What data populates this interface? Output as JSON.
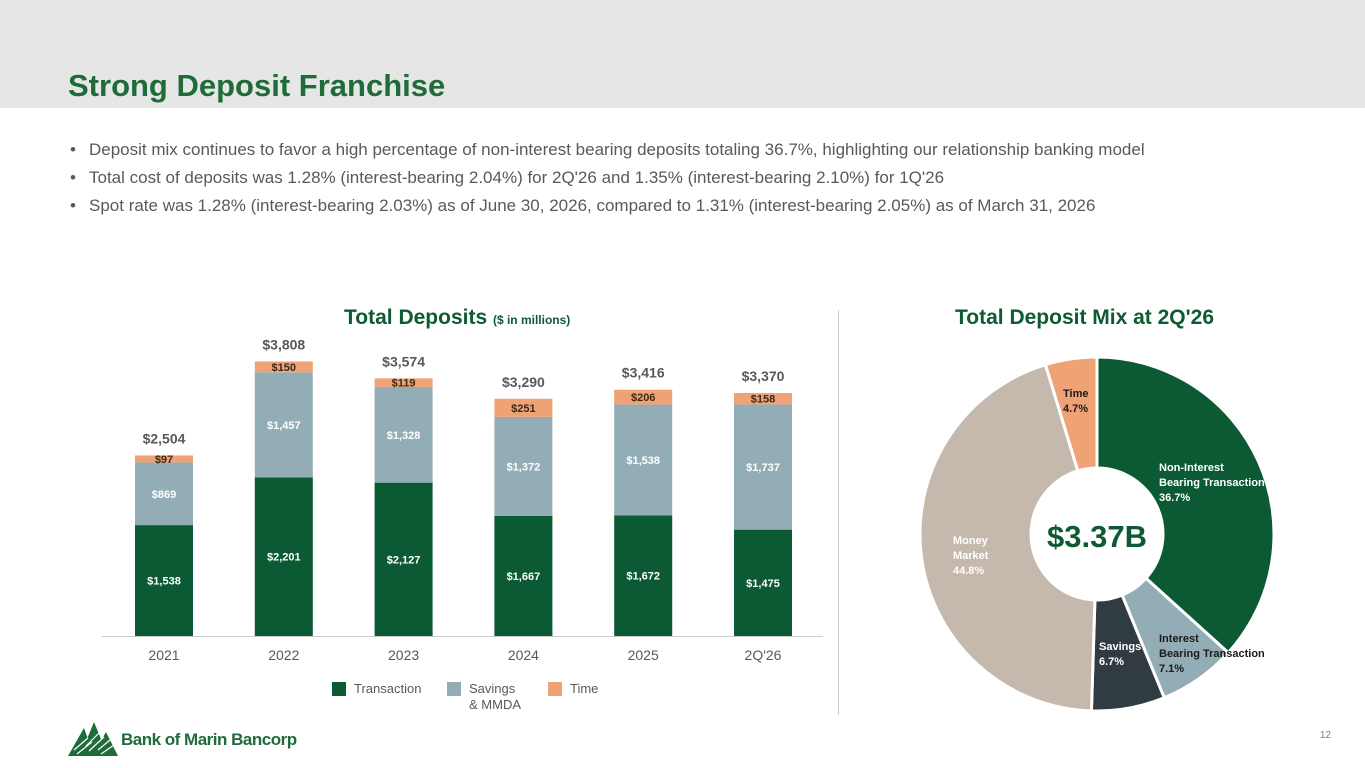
{
  "header": {
    "title": "Strong Deposit Franchise"
  },
  "bullets": [
    "Deposit mix continues to favor a high percentage of non-interest bearing deposits totaling 36.7%, highlighting our relationship banking model",
    "Total cost of deposits was 1.28% (interest-bearing 2.04%) for 2Q'26 and 1.35% (interest-bearing 2.10%) for 1Q'26",
    "Spot rate was 1.28% (interest-bearing 2.03%) as of June 30, 2026, compared to 1.31% (interest-bearing 2.05%) as of March 31, 2026"
  ],
  "colors": {
    "brand_green": "#1f6b3a",
    "transaction": "#0b5a34",
    "savings": "#93adb7",
    "time": "#efa275",
    "money_market": "#c5b9ae",
    "savings_slice": "#303c42",
    "interest_bearing": "#93adb7"
  },
  "bar_chart": {
    "title": "Total Deposits",
    "subtitle": "($ in millions)",
    "legend": {
      "transaction": "Transaction",
      "savings_line1": "Savings",
      "savings_line2": "& MMDA",
      "time": "Time"
    }
  },
  "pie_chart": {
    "title": "Total Deposit Mix at 2Q'26",
    "center_label": "$3.37B",
    "slices": [
      {
        "line1": "Non-Interest",
        "line2": "Bearing Transaction",
        "pct": "36.7%"
      },
      {
        "line1": "Interest",
        "line2": "Bearing Transaction",
        "pct": "7.1%"
      },
      {
        "line1": "Savings",
        "pct": "6.7%"
      },
      {
        "line1": "Money",
        "line2": "Market",
        "pct": "44.8%"
      },
      {
        "line1": "Time",
        "pct": "4.7%"
      }
    ]
  },
  "chart_data": [
    {
      "type": "bar",
      "title": "Total Deposits ($ in millions)",
      "categories": [
        "2021",
        "2022",
        "2023",
        "2024",
        "2025",
        "2Q'26"
      ],
      "series": [
        {
          "name": "Transaction",
          "values": [
            1538,
            2201,
            2127,
            1667,
            1672,
            1475
          ],
          "labels": [
            "$1,538",
            "$2,201",
            "$2,127",
            "$1,667",
            "$1,672",
            "$1,475"
          ]
        },
        {
          "name": "Savings & MMDA",
          "values": [
            869,
            1457,
            1328,
            1372,
            1538,
            1737
          ],
          "labels": [
            "$869",
            "$1,457",
            "$1,328",
            "$1,372",
            "$1,538",
            "$1,737"
          ]
        },
        {
          "name": "Time",
          "values": [
            97,
            150,
            119,
            251,
            206,
            158
          ],
          "labels": [
            "$97",
            "$150",
            "$119",
            "$251",
            "$206",
            "$158"
          ]
        }
      ],
      "totals": [
        "$2,504",
        "$3,808",
        "$3,574",
        "$3,290",
        "$3,416",
        "$3,370"
      ],
      "stacked": true,
      "grid": false,
      "legend_position": "bottom"
    },
    {
      "type": "pie",
      "title": "Total Deposit Mix at 2Q'26",
      "center_label": "$3.37B",
      "labels": [
        "Non-Interest Bearing Transaction",
        "Interest Bearing Transaction",
        "Savings",
        "Money Market",
        "Time"
      ],
      "values": [
        36.7,
        7.1,
        6.7,
        44.8,
        4.7
      ],
      "unit": "%"
    }
  ],
  "footer": {
    "logo_text": "Bank of Marin Bancorp",
    "page_number": "12"
  }
}
